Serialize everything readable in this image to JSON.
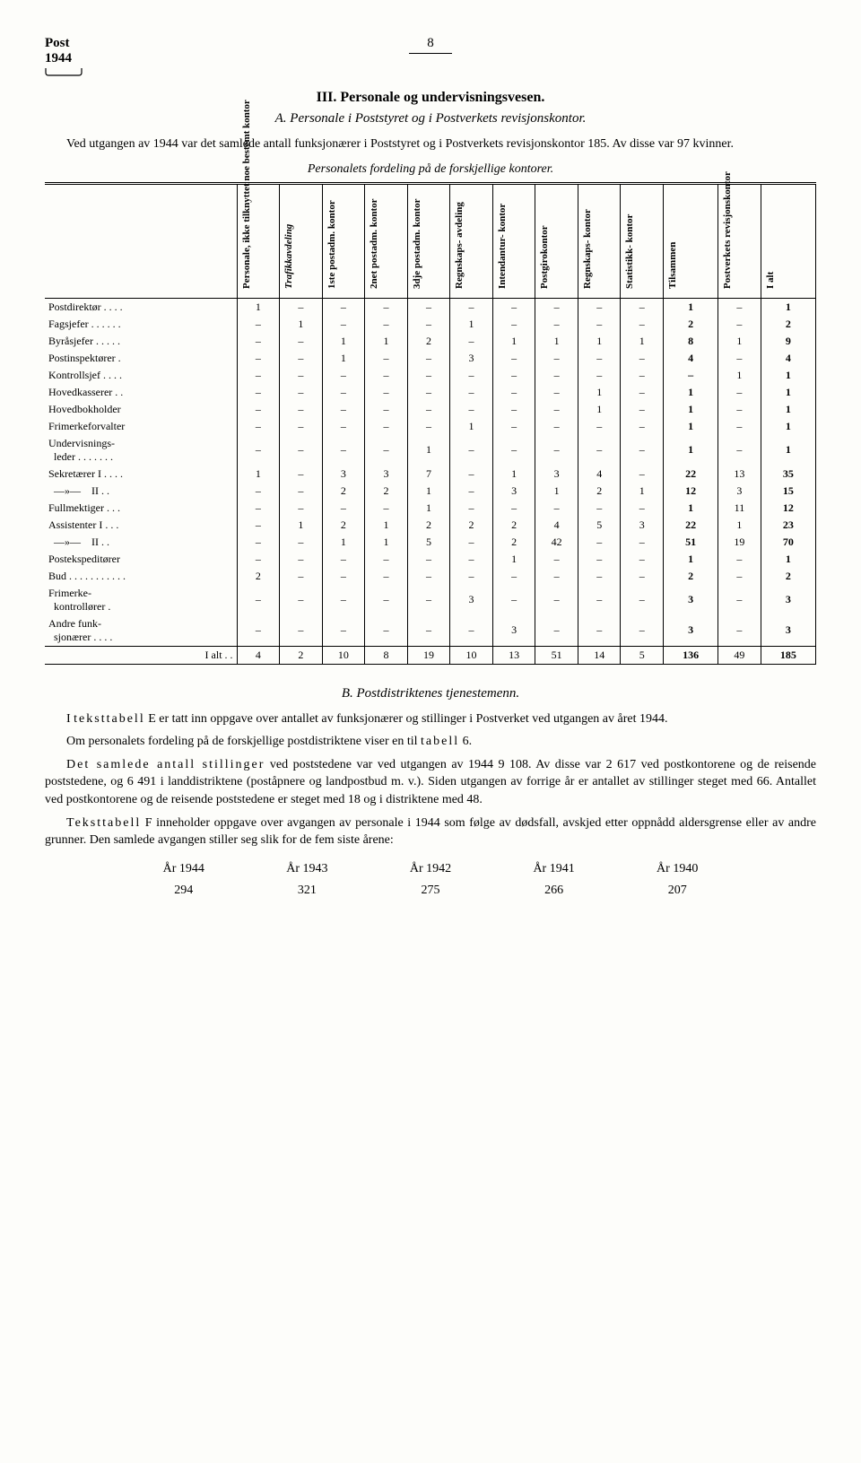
{
  "header": {
    "post": "Post",
    "year": "1944",
    "page_num": "8"
  },
  "section": {
    "roman": "III.",
    "title": "Personale og undervisningsvesen.",
    "sub_letter": "A.",
    "sub_title": "Personale i Poststyret og i Postverkets revisjonskontor."
  },
  "intro": "Ved utgangen av 1944 var det samlede antall funksjonærer i Poststyret og i Postverkets revisjonskontor 185. Av disse var 97 kvinner.",
  "table_caption": "Personalets fordeling på de forskjellige kontorer.",
  "table": {
    "columns": [
      "Personale, ikke tilknyttet noe bestemt kontor",
      "Trafikkavdeling",
      "1ste postadm. kontor",
      "2net postadm. kontor",
      "3dje postadm. kontor",
      "Regnskaps- avdeling",
      "Intendantur- kontor",
      "Postgirokontor",
      "Regnskaps- kontor",
      "Statistikk- kontor",
      "Tilsammen",
      "Postverkets revisjonskontor",
      "I alt"
    ],
    "col_styles": {
      "italic_cols": [
        1
      ],
      "bold_cols": [
        10,
        12
      ]
    },
    "rows": [
      {
        "label": "Postdirektør . . . .",
        "cells": [
          "1",
          "–",
          "–",
          "–",
          "–",
          "–",
          "–",
          "–",
          "–",
          "–",
          "1",
          "–",
          "1"
        ]
      },
      {
        "label": "Fagsjefer  . . . . . .",
        "cells": [
          "–",
          "1",
          "–",
          "–",
          "–",
          "1",
          "–",
          "–",
          "–",
          "–",
          "2",
          "–",
          "2"
        ]
      },
      {
        "label": "Byråsjefer  . . . . .",
        "cells": [
          "–",
          "–",
          "1",
          "1",
          "2",
          "–",
          "1",
          "1",
          "1",
          "1",
          "8",
          "1",
          "9"
        ]
      },
      {
        "label": "Postinspektører .",
        "cells": [
          "–",
          "–",
          "1",
          "–",
          "–",
          "3",
          "–",
          "–",
          "–",
          "–",
          "4",
          "–",
          "4"
        ]
      },
      {
        "label": "Kontrollsjef . . . .",
        "cells": [
          "–",
          "–",
          "–",
          "–",
          "–",
          "–",
          "–",
          "–",
          "–",
          "–",
          "–",
          "1",
          "1"
        ]
      },
      {
        "label": "Hovedkasserer . .",
        "cells": [
          "–",
          "–",
          "–",
          "–",
          "–",
          "–",
          "–",
          "–",
          "1",
          "–",
          "1",
          "–",
          "1"
        ]
      },
      {
        "label": "Hovedbokholder",
        "cells": [
          "–",
          "–",
          "–",
          "–",
          "–",
          "–",
          "–",
          "–",
          "1",
          "–",
          "1",
          "–",
          "1"
        ]
      },
      {
        "label": "Frimerkeforvalter",
        "cells": [
          "–",
          "–",
          "–",
          "–",
          "–",
          "1",
          "–",
          "–",
          "–",
          "–",
          "1",
          "–",
          "1"
        ]
      },
      {
        "label": "Undervisnings-<br>&nbsp;&nbsp;leder  . . . . . . .",
        "cells": [
          "–",
          "–",
          "–",
          "–",
          "1",
          "–",
          "–",
          "–",
          "–",
          "–",
          "1",
          "–",
          "1"
        ]
      },
      {
        "label": "Sekretærer I . . . .",
        "cells": [
          "1",
          "–",
          "3",
          "3",
          "7",
          "–",
          "1",
          "3",
          "4",
          "–",
          "22",
          "13",
          "35"
        ]
      },
      {
        "label": "&nbsp;&nbsp;—»—&nbsp;&nbsp;&nbsp;&nbsp;II . .",
        "cells": [
          "–",
          "–",
          "2",
          "2",
          "1",
          "–",
          "3",
          "1",
          "2",
          "1",
          "12",
          "3",
          "15"
        ]
      },
      {
        "label": "Fullmektiger  . . .",
        "cells": [
          "–",
          "–",
          "–",
          "–",
          "1",
          "–",
          "–",
          "–",
          "–",
          "–",
          "1",
          "11",
          "12"
        ]
      },
      {
        "label": "Assistenter I  . . .",
        "cells": [
          "–",
          "1",
          "2",
          "1",
          "2",
          "2",
          "2",
          "4",
          "5",
          "3",
          "22",
          "1",
          "23"
        ]
      },
      {
        "label": "&nbsp;&nbsp;—»—&nbsp;&nbsp;&nbsp;&nbsp;II . .",
        "cells": [
          "–",
          "–",
          "1",
          "1",
          "5",
          "–",
          "2",
          "42",
          "–",
          "–",
          "51",
          "19",
          "70"
        ]
      },
      {
        "label": "Postekspeditører",
        "cells": [
          "–",
          "–",
          "–",
          "–",
          "–",
          "–",
          "1",
          "–",
          "–",
          "–",
          "1",
          "–",
          "1"
        ]
      },
      {
        "label": "Bud . . . . . . . . . . .",
        "cells": [
          "2",
          "–",
          "–",
          "–",
          "–",
          "–",
          "–",
          "–",
          "–",
          "–",
          "2",
          "–",
          "2"
        ]
      },
      {
        "label": "Frimerke-<br>&nbsp;&nbsp;kontrollører .",
        "cells": [
          "–",
          "–",
          "–",
          "–",
          "–",
          "3",
          "–",
          "–",
          "–",
          "–",
          "3",
          "–",
          "3"
        ]
      },
      {
        "label": "Andre funk-<br>&nbsp;&nbsp;sjonærer . . . .",
        "cells": [
          "–",
          "–",
          "–",
          "–",
          "–",
          "–",
          "3",
          "–",
          "–",
          "–",
          "3",
          "–",
          "3"
        ]
      }
    ],
    "total": {
      "label": "I alt . .",
      "cells": [
        "4",
        "2",
        "10",
        "8",
        "19",
        "10",
        "13",
        "51",
        "14",
        "5",
        "136",
        "49",
        "185"
      ]
    }
  },
  "section_b": {
    "letter": "B.",
    "title": "Postdistriktenes tjenestemenn."
  },
  "para_b1_pre": "I ",
  "para_b1_spaced": "teksttabell",
  "para_b1_post": " E er tatt inn oppgave over antallet av funksjonærer og stillinger i Postverket ved utgangen av året 1944.",
  "para_b2_pre": "Om personalets fordeling på de forskjellige postdistriktene viser en til ",
  "para_b2_spaced": "tabell",
  "para_b2_post": " 6.",
  "para_b3_spaced1": "Det samlede antall stillinger",
  "para_b3_post": " ved poststedene var ved utgangen av 1944 9 108. Av disse var 2 617 ved postkontorene og de reisende poststedene, og 6 491 i landdistriktene (poståpnere og landpostbud m. v.). Siden utgangen av forrige år er antallet av stillinger steget med 66. Antallet ved postkontorene og de reisende poststedene er steget med 18 og i distriktene med 48.",
  "para_b4_spaced": "Teksttabell",
  "para_b4_post": " F inneholder oppgave over avgangen av personale i 1944 som følge av dødsfall, avskjed etter oppnådd aldersgrense eller av andre grunner. Den samlede avgangen stiller seg slik for de fem siste årene:",
  "years_table": {
    "headers": [
      "År 1944",
      "År 1943",
      "År 1942",
      "År 1941",
      "År 1940"
    ],
    "values": [
      "294",
      "321",
      "275",
      "266",
      "207"
    ]
  }
}
